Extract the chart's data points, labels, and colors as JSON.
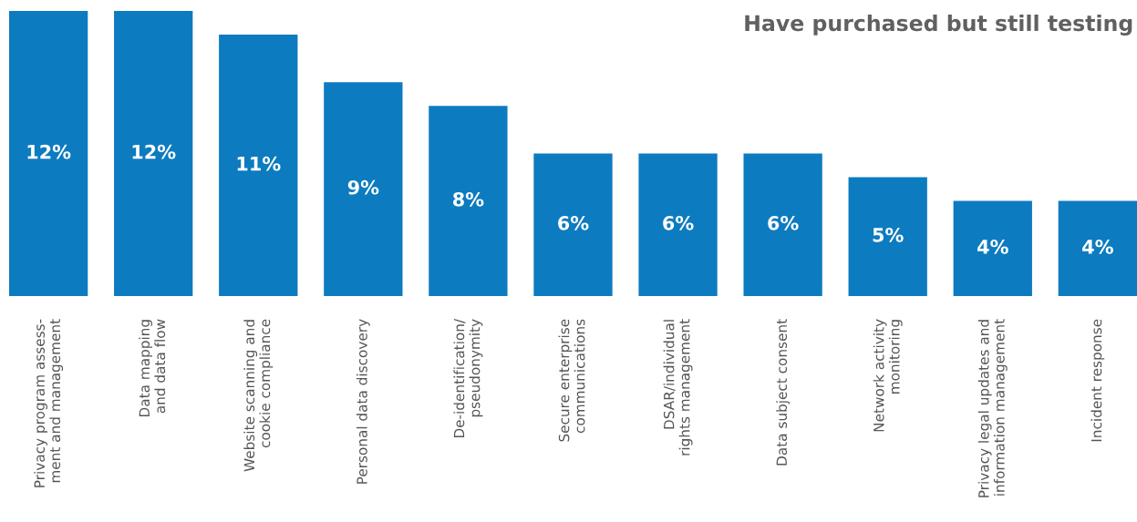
{
  "chart_data": {
    "type": "bar",
    "title": "Have purchased but still testing",
    "categories": [
      "Privacy program assess-\nment and management",
      "Data mapping\nand data flow",
      "Website scanning and\ncookie compliance",
      "Personal data discovery",
      "De-identification/\npseudonymity",
      "Secure enterprise\ncommunications",
      "DSAR/individual\nrights management",
      "Data subject consent",
      "Network activity\nmonitoring",
      "Privacy legal updates and\ninformation management",
      "Incident response"
    ],
    "values": [
      12,
      12,
      11,
      9,
      8,
      6,
      6,
      6,
      5,
      4,
      4
    ],
    "value_labels": [
      "12%",
      "12%",
      "11%",
      "9%",
      "8%",
      "6%",
      "6%",
      "6%",
      "5%",
      "4%",
      "4%"
    ],
    "color": "#0d7bc0"
  }
}
